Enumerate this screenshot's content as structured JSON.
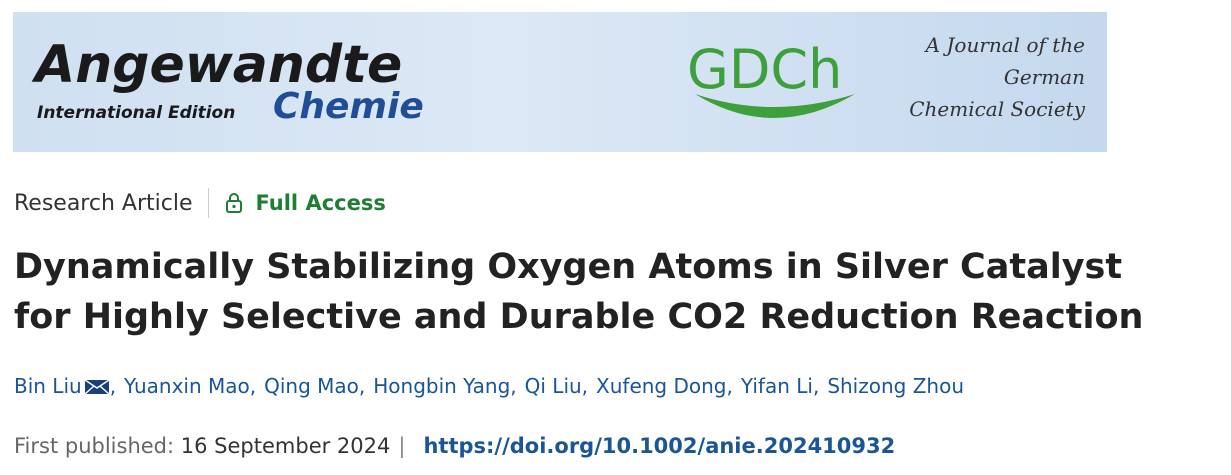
{
  "banner": {
    "journal": "Angewandte",
    "edition": "International Edition",
    "subtitle": "Chemie",
    "society_logo": "GDCh",
    "society_lines": [
      "A Journal of the",
      "German",
      "Chemical Society"
    ]
  },
  "article": {
    "type": "Research Article",
    "access": "Full Access",
    "title": "Dynamically Stabilizing Oxygen Atoms in Silver Catalyst for Highly Selective and Durable CO2 Reduction Reaction",
    "authors": [
      "Bin Liu",
      "Yuanxin Mao",
      "Qing Mao",
      "Hongbin Yang",
      "Qi Liu",
      "Xufeng Dong",
      "Yifan Li",
      "Shizong Zhou"
    ],
    "author_separator": ",",
    "published_label": "First published:",
    "published_date": "16 September 2024",
    "meta_separator": "|",
    "doi": "https://doi.org/10.1002/anie.202410932"
  }
}
